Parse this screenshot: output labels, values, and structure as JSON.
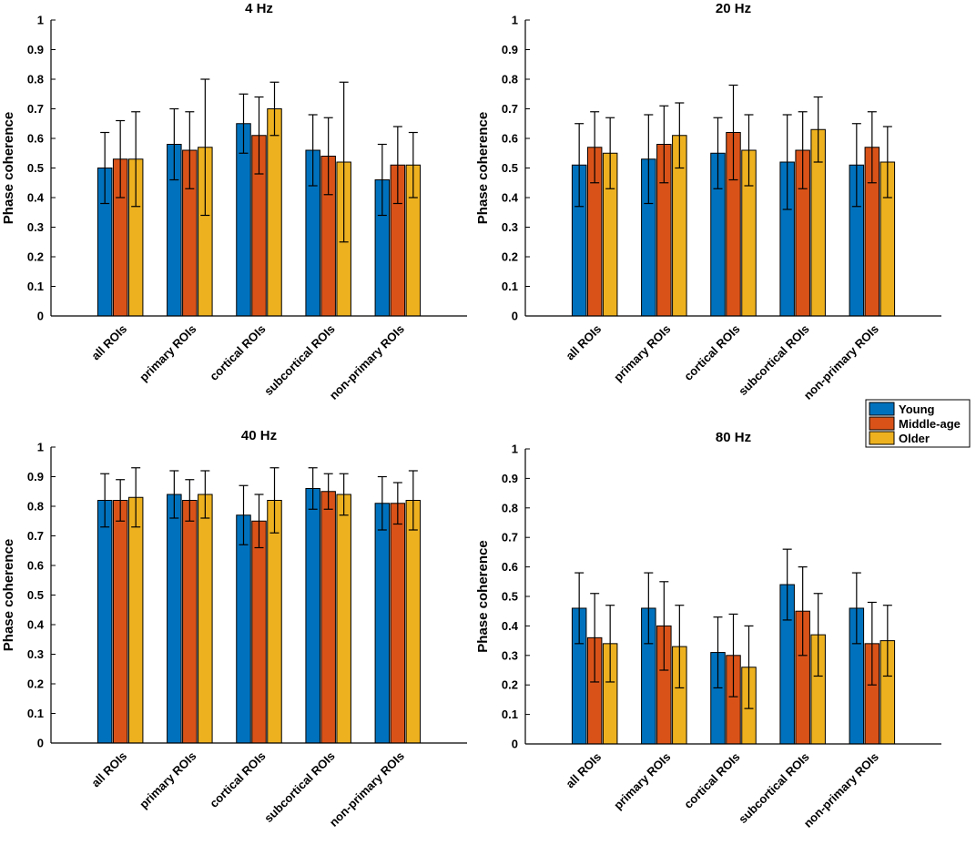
{
  "figure": {
    "ylabel": "Phase coherence"
  },
  "colors": {
    "Young": "#0072BD",
    "Middle-age": "#D95319",
    "Older": "#EDB120"
  },
  "legend": {
    "entries": [
      "Young",
      "Middle-age",
      "Older"
    ],
    "placement": "right-middle"
  },
  "chart_data": [
    {
      "type": "bar",
      "title": "4 Hz",
      "ylabel": "Phase coherence",
      "ylim": [
        0,
        1
      ],
      "yticks": [
        "0",
        "0.1",
        "0.2",
        "0.3",
        "0.4",
        "0.5",
        "0.6",
        "0.7",
        "0.8",
        "0.9",
        "1"
      ],
      "categories": [
        "all ROIs",
        "primary ROIs",
        "cortical ROIs",
        "subcortical ROIs",
        "non-primary ROIs"
      ],
      "series": [
        {
          "name": "Young",
          "values": [
            0.5,
            0.58,
            0.65,
            0.56,
            0.46
          ],
          "errors": [
            0.12,
            0.12,
            0.1,
            0.12,
            0.12
          ]
        },
        {
          "name": "Middle-age",
          "values": [
            0.53,
            0.56,
            0.61,
            0.54,
            0.51
          ],
          "errors": [
            0.13,
            0.13,
            0.13,
            0.13,
            0.13
          ]
        },
        {
          "name": "Older",
          "values": [
            0.53,
            0.57,
            0.7,
            0.52,
            0.51
          ],
          "errors": [
            0.16,
            0.23,
            0.09,
            0.27,
            0.11
          ]
        }
      ]
    },
    {
      "type": "bar",
      "title": "20 Hz",
      "ylabel": "Phase coherence",
      "ylim": [
        0,
        1
      ],
      "yticks": [
        "0",
        "0.1",
        "0.2",
        "0.3",
        "0.4",
        "0.5",
        "0.6",
        "0.7",
        "0.8",
        "0.9",
        "1"
      ],
      "categories": [
        "all ROIs",
        "primary ROIs",
        "cortical ROIs",
        "subcortical ROIs",
        "non-primary ROIs"
      ],
      "series": [
        {
          "name": "Young",
          "values": [
            0.51,
            0.53,
            0.55,
            0.52,
            0.51
          ],
          "errors": [
            0.14,
            0.15,
            0.12,
            0.16,
            0.14
          ]
        },
        {
          "name": "Middle-age",
          "values": [
            0.57,
            0.58,
            0.62,
            0.56,
            0.57
          ],
          "errors": [
            0.12,
            0.13,
            0.16,
            0.13,
            0.12
          ]
        },
        {
          "name": "Older",
          "values": [
            0.55,
            0.61,
            0.56,
            0.63,
            0.52
          ],
          "errors": [
            0.12,
            0.11,
            0.12,
            0.11,
            0.12
          ]
        }
      ]
    },
    {
      "type": "bar",
      "title": "40 Hz",
      "ylabel": "Phase coherence",
      "ylim": [
        0,
        1
      ],
      "yticks": [
        "0",
        "0.1",
        "0.2",
        "0.3",
        "0.4",
        "0.5",
        "0.6",
        "0.7",
        "0.8",
        "0.9",
        "1"
      ],
      "categories": [
        "all ROIs",
        "primary ROIs",
        "cortical ROIs",
        "subcortical ROIs",
        "non-primary ROIs"
      ],
      "series": [
        {
          "name": "Young",
          "values": [
            0.82,
            0.84,
            0.77,
            0.86,
            0.81
          ],
          "errors": [
            0.09,
            0.08,
            0.1,
            0.07,
            0.09
          ]
        },
        {
          "name": "Middle-age",
          "values": [
            0.82,
            0.82,
            0.75,
            0.85,
            0.81
          ],
          "errors": [
            0.07,
            0.07,
            0.09,
            0.06,
            0.07
          ]
        },
        {
          "name": "Older",
          "values": [
            0.83,
            0.84,
            0.82,
            0.84,
            0.82
          ],
          "errors": [
            0.1,
            0.08,
            0.11,
            0.07,
            0.1
          ]
        }
      ]
    },
    {
      "type": "bar",
      "title": "80 Hz",
      "ylabel": "Phase coherence",
      "ylim": [
        0,
        1
      ],
      "yticks": [
        "0",
        "0.1",
        "0.2",
        "0.3",
        "0.4",
        "0.5",
        "0.6",
        "0.7",
        "0.8",
        "0.9",
        "1"
      ],
      "categories": [
        "all ROIs",
        "primary ROIs",
        "cortical ROIs",
        "subcortical ROIs",
        "non-primary ROIs"
      ],
      "series": [
        {
          "name": "Young",
          "values": [
            0.46,
            0.46,
            0.31,
            0.54,
            0.46
          ],
          "errors": [
            0.12,
            0.12,
            0.12,
            0.12,
            0.12
          ]
        },
        {
          "name": "Middle-age",
          "values": [
            0.36,
            0.4,
            0.3,
            0.45,
            0.34
          ],
          "errors": [
            0.15,
            0.15,
            0.14,
            0.15,
            0.14
          ]
        },
        {
          "name": "Older",
          "values": [
            0.34,
            0.33,
            0.26,
            0.37,
            0.35
          ],
          "errors": [
            0.13,
            0.14,
            0.14,
            0.14,
            0.12
          ]
        }
      ]
    }
  ]
}
